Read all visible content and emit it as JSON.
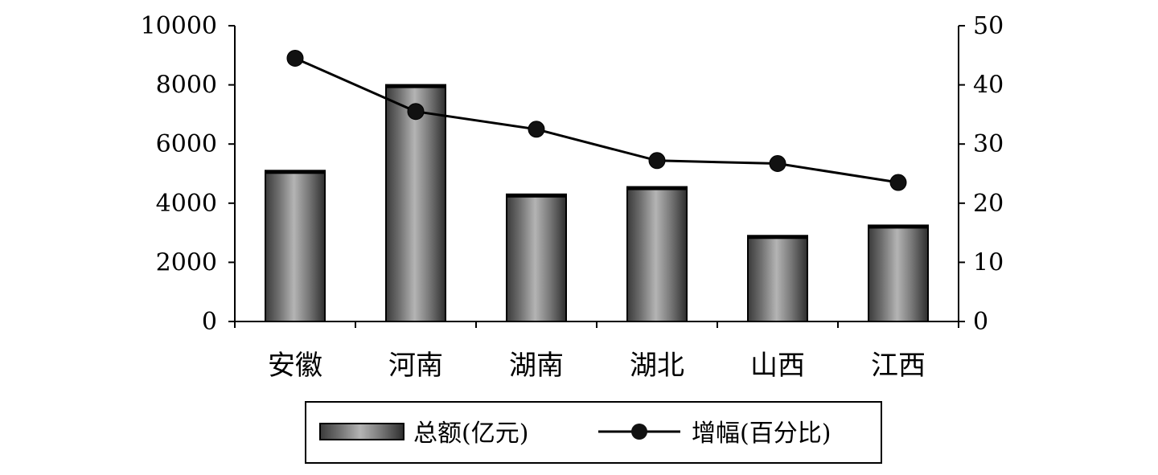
{
  "chart_data": {
    "type": "bar",
    "categories": [
      "安徽",
      "河南",
      "湖南",
      "湖北",
      "山西",
      "江西"
    ],
    "series": [
      {
        "name": "总额(亿元)",
        "type": "bar",
        "axis": "left",
        "values": [
          5100,
          8000,
          4300,
          4550,
          2900,
          3250
        ]
      },
      {
        "name": "增幅(百分比)",
        "type": "line",
        "axis": "right",
        "values": [
          44.5,
          35.5,
          32.5,
          27.2,
          26.7,
          23.5
        ]
      }
    ],
    "y_left": {
      "min": 0,
      "max": 10000,
      "ticks": [
        0,
        2000,
        4000,
        6000,
        8000,
        10000
      ]
    },
    "y_right": {
      "min": 0,
      "max": 50,
      "ticks": [
        0,
        10,
        20,
        30,
        40,
        50
      ]
    },
    "legend_position": "bottom",
    "grid": false
  }
}
